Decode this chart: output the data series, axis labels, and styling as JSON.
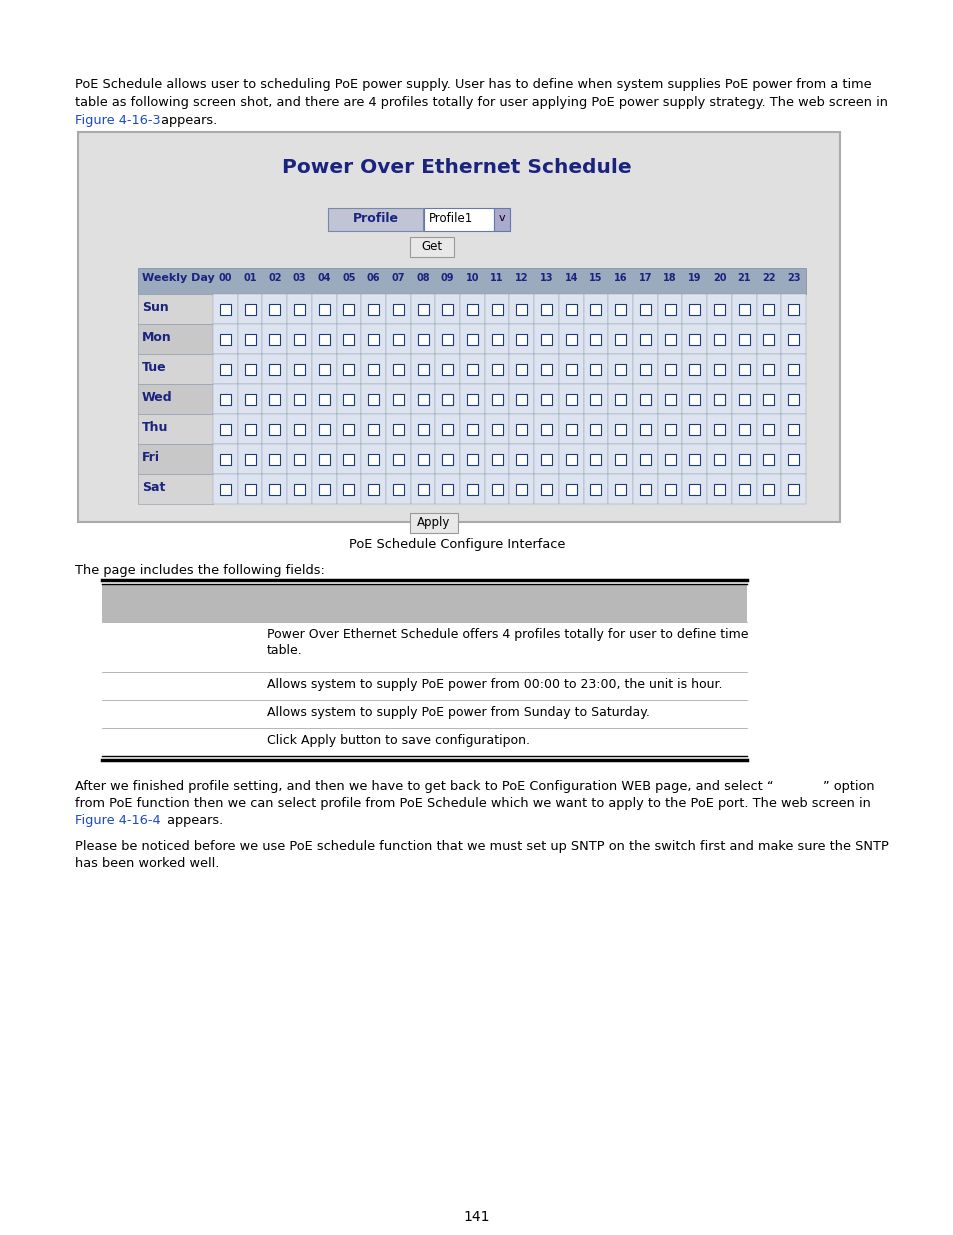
{
  "intro_line1": "PoE Schedule allows user to scheduling PoE power supply. User has to define when system supplies PoE power from a time",
  "intro_line2": "table as following screen shot, and there are 4 profiles totally for user applying PoE power supply strategy. The web screen in",
  "intro_link1": "Figure 4-16-3",
  "intro_line3_post": " appears.",
  "box_title": "Power Over Ethernet Schedule",
  "profile_label": "Profile",
  "profile_value": "Profile1",
  "get_button": "Get",
  "apply_button": "Apply",
  "hours": [
    "00",
    "01",
    "02",
    "03",
    "04",
    "05",
    "06",
    "07",
    "08",
    "09",
    "10",
    "11",
    "12",
    "13",
    "14",
    "15",
    "16",
    "17",
    "18",
    "19",
    "20",
    "21",
    "22",
    "23"
  ],
  "days": [
    "Sun",
    "Mon",
    "Tue",
    "Wed",
    "Thu",
    "Fri",
    "Sat"
  ],
  "caption": "PoE Schedule Configure Interface",
  "fields_header": "The page includes the following fields:",
  "field_rows": [
    "Power Over Ethernet Schedule offers 4 profiles totally for user to define time\ntable.",
    "Allows system to supply PoE power from 00:00 to 23:00, the unit is hour.",
    "Allows system to supply PoE power from Sunday to Saturday.",
    "Click Apply button to save configuratipon."
  ],
  "bottom_line1": "After we finished profile setting, and then we have to get back to PoE Configuration WEB page, and select “            ” option",
  "bottom_line2": "from PoE function then we can select profile from PoE Schedule which we want to apply to the PoE port. The web screen in",
  "bottom_link2": "Figure 4-16-4",
  "bottom_line3_post": " appears.",
  "bottom_line4": "Please be noticed before we use PoE schedule function that we must set up SNTP on the switch first and make sure the SNTP",
  "bottom_line5": "has been worked well.",
  "page_number": "141",
  "link_color": "#1a47cc",
  "title_color": "#1a237e",
  "day_label_color": "#1a237e",
  "header_label_color": "#1a237e",
  "bg_gray": "#e2e2e2",
  "header_row_bg": "#9caabe",
  "odd_row_bg": "#d5d5d5",
  "even_row_bg": "#c8c8c8",
  "cell_bg": "#dde4f0",
  "checkbox_border": "#1a3a7a",
  "fields_header_bg": "#b8b8b8"
}
